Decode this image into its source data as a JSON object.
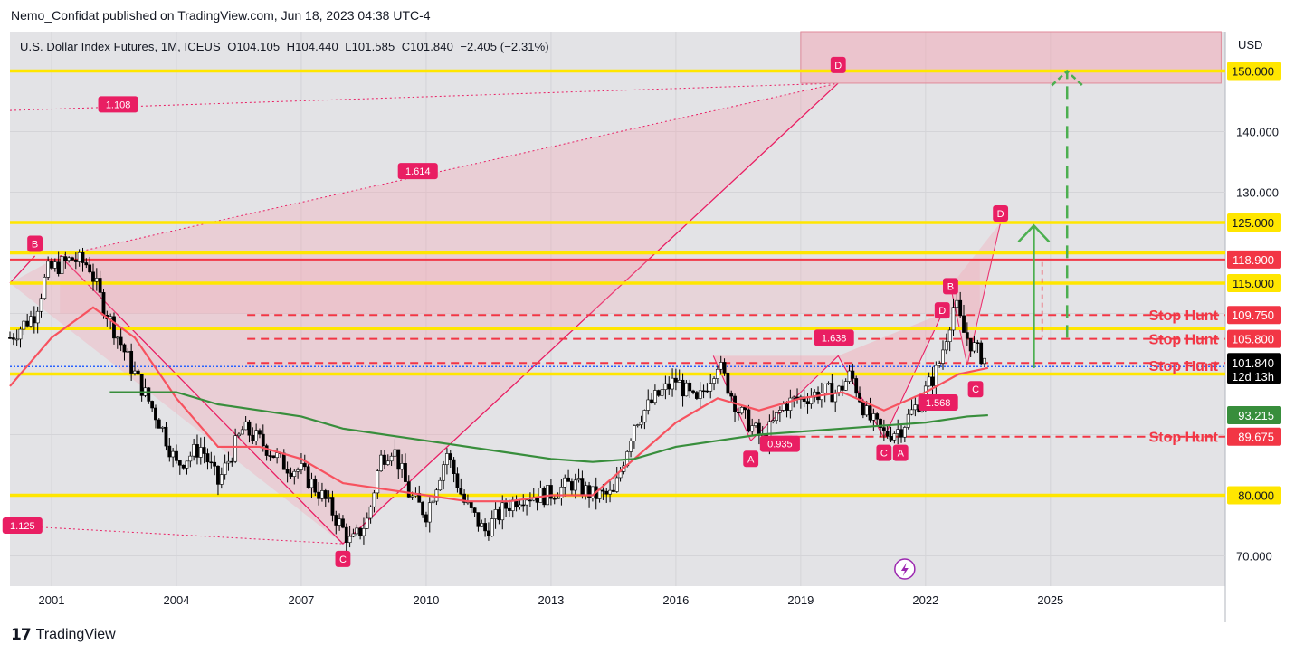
{
  "header": {
    "publisher_line": "Nemo_Confidat published on TradingView.com, Jun 18, 2023 04:38 UTC-4"
  },
  "legend": {
    "symbol": "U.S. Dollar Index Futures, 1M, ICEUS",
    "open_label": "O",
    "open": "104.105",
    "high_label": "H",
    "high": "104.440",
    "low_label": "L",
    "low": "101.585",
    "close_label": "C",
    "close": "101.840",
    "change": "−2.405 (−2.31%)"
  },
  "footer": {
    "brand": "TradingView",
    "logo_glyph": "𝟭𝟳"
  },
  "colors": {
    "background": "#e3e3e6",
    "yellow_level": "#ffe600",
    "red_level": "#f23645",
    "pattern_fill": "#f4a6b4",
    "pattern_edge": "#e91e63",
    "ema_red": "#f7525f",
    "ma_green": "#388e3c",
    "projection_green": "#4caf50",
    "candle_up": "#ffffff",
    "candle_down": "#000000"
  },
  "chart_data": {
    "type": "candlestick",
    "instrument": "U.S. Dollar Index Futures",
    "interval": "1M",
    "exchange": "ICEUS",
    "currency": "USD",
    "xlim": [
      2000.0,
      2029.2
    ],
    "ylim": [
      65.0,
      156.5
    ],
    "x_ticks": [
      "2001",
      "2004",
      "2007",
      "2010",
      "2013",
      "2016",
      "2019",
      "2022",
      "2025"
    ],
    "y_ticks": [
      "70.000",
      "130.000",
      "140.000"
    ],
    "price_trend": [
      [
        2000.0,
        106
      ],
      [
        2000.6,
        110
      ],
      [
        2000.9,
        117
      ],
      [
        2001.5,
        119
      ],
      [
        2001.9,
        118
      ],
      [
        2002.2,
        112
      ],
      [
        2002.6,
        106
      ],
      [
        2003.0,
        100
      ],
      [
        2003.6,
        92
      ],
      [
        2004.0,
        85
      ],
      [
        2004.6,
        88
      ],
      [
        2005.0,
        82
      ],
      [
        2005.6,
        91
      ],
      [
        2006.0,
        89
      ],
      [
        2006.6,
        85
      ],
      [
        2007.0,
        84
      ],
      [
        2007.6,
        79
      ],
      [
        2008.2,
        72
      ],
      [
        2008.6,
        76
      ],
      [
        2008.9,
        86
      ],
      [
        2009.2,
        88
      ],
      [
        2009.6,
        80
      ],
      [
        2010.0,
        77
      ],
      [
        2010.5,
        87
      ],
      [
        2010.9,
        79
      ],
      [
        2011.4,
        74
      ],
      [
        2011.9,
        78
      ],
      [
        2012.3,
        80
      ],
      [
        2012.9,
        80
      ],
      [
        2013.5,
        82
      ],
      [
        2014.0,
        80
      ],
      [
        2014.5,
        80
      ],
      [
        2015.0,
        92
      ],
      [
        2015.5,
        96
      ],
      [
        2016.0,
        99
      ],
      [
        2016.5,
        95
      ],
      [
        2017.0,
        102
      ],
      [
        2017.5,
        94
      ],
      [
        2018.1,
        89
      ],
      [
        2018.6,
        95
      ],
      [
        2019.0,
        96
      ],
      [
        2019.5,
        97
      ],
      [
        2019.9,
        97
      ],
      [
        2020.2,
        100
      ],
      [
        2020.6,
        93
      ],
      [
        2021.0,
        90
      ],
      [
        2021.4,
        91
      ],
      [
        2021.9,
        96
      ],
      [
        2022.3,
        101
      ],
      [
        2022.7,
        112
      ],
      [
        2022.9,
        107
      ],
      [
        2023.2,
        104
      ],
      [
        2023.5,
        102
      ]
    ],
    "horizontal_levels": [
      {
        "label": "150.000",
        "value": 150.0,
        "color": "#ffe600",
        "style": "solid"
      },
      {
        "label": "125.000",
        "value": 125.0,
        "color": "#ffe600",
        "style": "solid"
      },
      {
        "label": "120.000",
        "value": 120.0,
        "color": "#ffe600",
        "style": "solid"
      },
      {
        "label": "118.900",
        "value": 118.9,
        "color": "#f23645",
        "style": "solid"
      },
      {
        "label": "115.000",
        "value": 115.0,
        "color": "#ffe600",
        "style": "solid"
      },
      {
        "label": "109.750",
        "value": 109.75,
        "color": "#f23645",
        "style": "dashed",
        "annotation": "Stop Hunt"
      },
      {
        "label": "107.500",
        "value": 107.5,
        "color": "#ffe600",
        "style": "solid"
      },
      {
        "label": "105.800",
        "value": 105.8,
        "color": "#f23645",
        "style": "dashed",
        "annotation": "Stop Hunt"
      },
      {
        "label": "101.840",
        "value": 101.84,
        "color": "#f23645",
        "style": "dashed",
        "annotation": "Stop Hunt"
      },
      {
        "label": "100.000",
        "value": 100.0,
        "color": "#ffe600",
        "style": "solid"
      },
      {
        "label": "93.215",
        "value": 93.215,
        "color": "#388e3c",
        "style": "none"
      },
      {
        "label": "89.675",
        "value": 89.675,
        "color": "#f23645",
        "style": "dashed",
        "annotation": "Stop Hunt"
      },
      {
        "label": "80.000",
        "value": 80.0,
        "color": "#ffe600",
        "style": "solid"
      }
    ],
    "price_badges": [
      {
        "text": "150.000",
        "value": 150.0,
        "bg": "#ffe600",
        "fg": "#131722"
      },
      {
        "text": "125.000",
        "value": 125.0,
        "bg": "#ffe600",
        "fg": "#131722"
      },
      {
        "text": "118.900",
        "value": 118.9,
        "bg": "#f23645",
        "fg": "#ffffff"
      },
      {
        "text": "115.000",
        "value": 115.0,
        "bg": "#ffe600",
        "fg": "#131722"
      },
      {
        "text": "109.750",
        "value": 109.75,
        "bg": "#f23645",
        "fg": "#ffffff"
      },
      {
        "text": "105.800",
        "value": 105.8,
        "bg": "#f23645",
        "fg": "#ffffff"
      },
      {
        "text": "101.840",
        "value": 101.84,
        "bg": "#000000",
        "fg": "#ffffff",
        "sub": "12d 13h"
      },
      {
        "text": "93.215",
        "value": 93.215,
        "bg": "#388e3c",
        "fg": "#ffffff"
      },
      {
        "text": "89.675",
        "value": 89.675,
        "bg": "#f23645",
        "fg": "#ffffff"
      },
      {
        "text": "80.000",
        "value": 80.0,
        "bg": "#ffe600",
        "fg": "#131722"
      }
    ],
    "stop_hunt_labels": [
      {
        "text": "Stop Hunt",
        "value": 109.75
      },
      {
        "text": "Stop Hunt",
        "value": 105.8
      },
      {
        "text": "Stop Hunt",
        "value": 101.4
      },
      {
        "text": "Stop Hunt",
        "value": 89.675
      }
    ],
    "ratio_labels": [
      {
        "text": "1.108",
        "x": 2002.6,
        "y": 144.5
      },
      {
        "text": "1.614",
        "x": 2009.8,
        "y": 133.5
      },
      {
        "text": "1.125",
        "x": 2000.3,
        "y": 75.0
      },
      {
        "text": "1.638",
        "x": 2019.8,
        "y": 106.0
      },
      {
        "text": "0.935",
        "x": 2018.5,
        "y": 88.5
      },
      {
        "text": "1.568",
        "x": 2022.3,
        "y": 95.3
      }
    ],
    "point_labels": [
      {
        "text": "B",
        "x": 2000.6,
        "y": 121.5
      },
      {
        "text": "C",
        "x": 2008.0,
        "y": 69.5
      },
      {
        "text": "D",
        "x": 2019.9,
        "y": 151.0
      },
      {
        "text": "A",
        "x": 2017.8,
        "y": 86.0
      },
      {
        "text": "C",
        "x": 2021.0,
        "y": 87.0
      },
      {
        "text": "A",
        "x": 2021.4,
        "y": 87.0
      },
      {
        "text": "B",
        "x": 2022.6,
        "y": 114.5
      },
      {
        "text": "D",
        "x": 2022.4,
        "y": 110.5
      },
      {
        "text": "C",
        "x": 2023.2,
        "y": 97.5
      },
      {
        "text": "D",
        "x": 2023.8,
        "y": 126.5
      }
    ],
    "large_pattern": {
      "X": [
        2000.0,
        115.0
      ],
      "A": [
        2000.6,
        119.5
      ],
      "B": [
        2001.2,
        119.5
      ],
      "C": [
        2008.0,
        72.0
      ],
      "D": [
        2019.9,
        148.0
      ],
      "zone": {
        "x0": 2019.0,
        "x1": 2029.1,
        "y0": 148.0,
        "y1": 156.5
      }
    },
    "small_pattern": {
      "X": [
        2016.9,
        103.0
      ],
      "A": [
        2017.8,
        89.0
      ],
      "B": [
        2019.9,
        103.0
      ],
      "C": [
        2021.0,
        89.5
      ],
      "D": [
        2022.4,
        110.0
      ]
    },
    "projection": {
      "green_arrow": {
        "x": 2024.6,
        "from": 101.0,
        "to": 124.5
      },
      "dashed_green_arrow": {
        "x": 2025.4,
        "from": 106.0,
        "to": 150.0
      },
      "dashed_red_arrow": {
        "x": 2024.8,
        "from": 118.5,
        "to": 106.0
      }
    },
    "moving_averages": [
      {
        "name": "",
        "color": "#f7525f",
        "points": [
          [
            2000.0,
            98
          ],
          [
            2001.0,
            106
          ],
          [
            2002.0,
            111
          ],
          [
            2003.0,
            106
          ],
          [
            2004.0,
            96
          ],
          [
            2005.0,
            88
          ],
          [
            2006.0,
            88
          ],
          [
            2007.0,
            86
          ],
          [
            2008.0,
            82
          ],
          [
            2009.0,
            81
          ],
          [
            2010.0,
            80
          ],
          [
            2011.0,
            79
          ],
          [
            2012.0,
            79
          ],
          [
            2013.0,
            80
          ],
          [
            2014.0,
            80
          ],
          [
            2015.0,
            86
          ],
          [
            2016.0,
            92
          ],
          [
            2017.0,
            96
          ],
          [
            2018.0,
            94
          ],
          [
            2019.0,
            96
          ],
          [
            2020.0,
            97
          ],
          [
            2021.0,
            94
          ],
          [
            2022.0,
            97
          ],
          [
            2022.8,
            100
          ],
          [
            2023.5,
            101
          ]
        ]
      },
      {
        "name": "",
        "color": "#388e3c",
        "points": [
          [
            2002.4,
            97
          ],
          [
            2004.0,
            97
          ],
          [
            2005.0,
            95
          ],
          [
            2006.0,
            94
          ],
          [
            2007.0,
            93
          ],
          [
            2008.0,
            91
          ],
          [
            2010.0,
            89
          ],
          [
            2012.0,
            87
          ],
          [
            2013.0,
            86
          ],
          [
            2014.0,
            85.5
          ],
          [
            2015.0,
            86
          ],
          [
            2016.0,
            88
          ],
          [
            2017.0,
            89
          ],
          [
            2018.0,
            90
          ],
          [
            2019.0,
            90.5
          ],
          [
            2020.0,
            91
          ],
          [
            2021.0,
            91.5
          ],
          [
            2022.0,
            92
          ],
          [
            2023.0,
            93
          ],
          [
            2023.5,
            93.2
          ]
        ]
      }
    ]
  }
}
